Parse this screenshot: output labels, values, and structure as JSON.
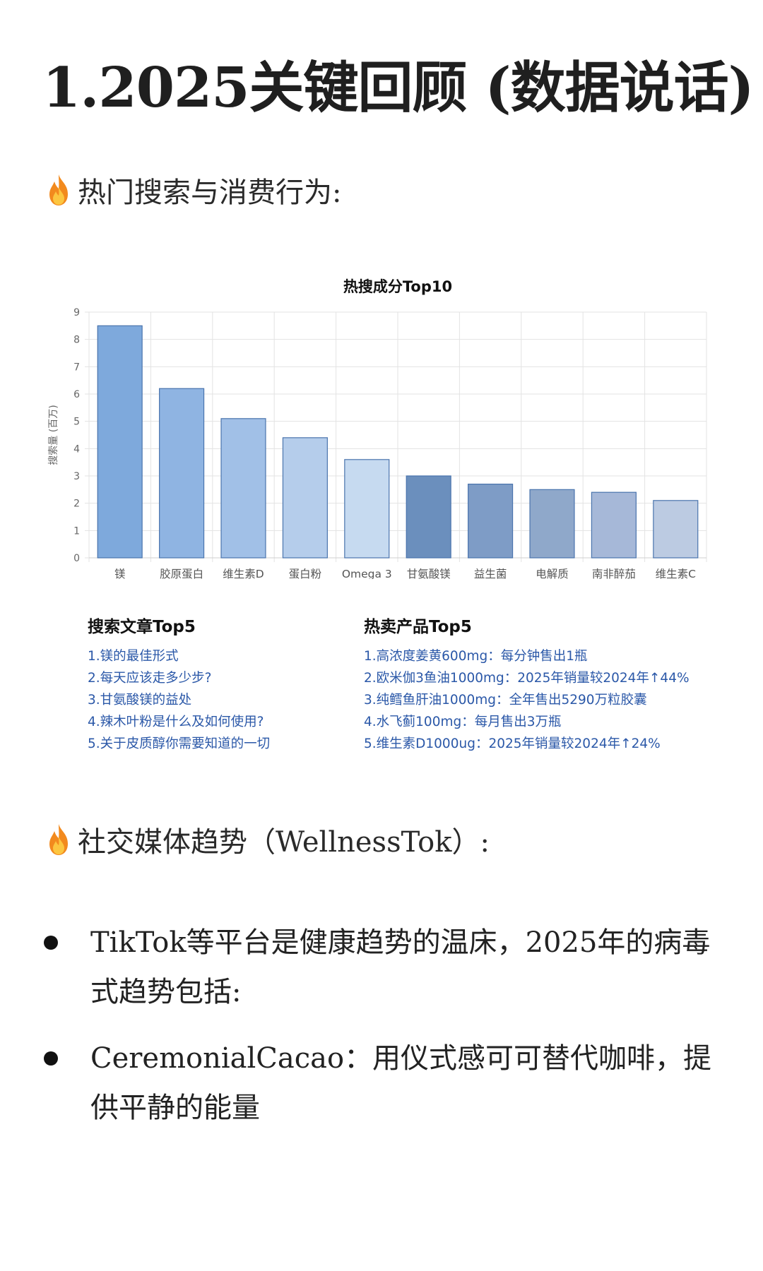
{
  "page": {
    "title": "1.2025关键回顾 (数据说话)",
    "section1_heading": "热门搜索与消费行为:",
    "section2_heading": "社交媒体趋势（WellnessTok）:",
    "bullets": [
      "TikTok等平台是健康趋势的温床，2025年的病毒式趋势包括:",
      "CeremonialCacao：用仪式感可可替代咖啡，提供平静的能量"
    ]
  },
  "icons": {
    "section_marker": "fire-icon"
  },
  "chart_data": {
    "type": "bar",
    "title": "热搜成分Top10",
    "ylabel": "搜索量 (百万)",
    "xlabel": "",
    "ylim": [
      0,
      9
    ],
    "yticks": [
      0,
      1,
      2,
      3,
      4,
      5,
      6,
      7,
      8,
      9
    ],
    "grid": true,
    "categories": [
      "镁",
      "胶原蛋白",
      "维生素D",
      "蛋白粉",
      "Omega 3",
      "甘氨酸镁",
      "益生菌",
      "电解质",
      "南非醉茄",
      "维生素C"
    ],
    "values": [
      8.5,
      6.2,
      5.1,
      4.4,
      3.6,
      3.0,
      2.7,
      2.5,
      2.4,
      2.1
    ],
    "colors": [
      "#7ea9dc",
      "#8fb4e2",
      "#a1c0e7",
      "#b5cdeb",
      "#c6daf0",
      "#6b8fbd",
      "#7e9cc6",
      "#8fa8ca",
      "#a6b8d8",
      "#bccbe2"
    ],
    "border_color": "#4a74ad"
  },
  "lists": {
    "articles": {
      "title": "搜索文章Top5",
      "items": [
        "1.镁的最佳形式",
        "2.每天应该走多少步?",
        "3.甘氨酸镁的益处",
        "4.辣木叶粉是什么及如何使用?",
        "5.关于皮质醇你需要知道的一切"
      ]
    },
    "products": {
      "title": "热卖产品Top5",
      "items": [
        "1.高浓度姜黄600mg：每分钟售出1瓶",
        "2.欧米伽3鱼油1000mg：2025年销量较2024年↑44%",
        "3.纯鳕鱼肝油1000mg：全年售出5290万粒胶囊",
        "4.水飞蓟100mg：每月售出3万瓶",
        "5.维生素D1000ug：2025年销量较2024年↑24%"
      ]
    }
  }
}
